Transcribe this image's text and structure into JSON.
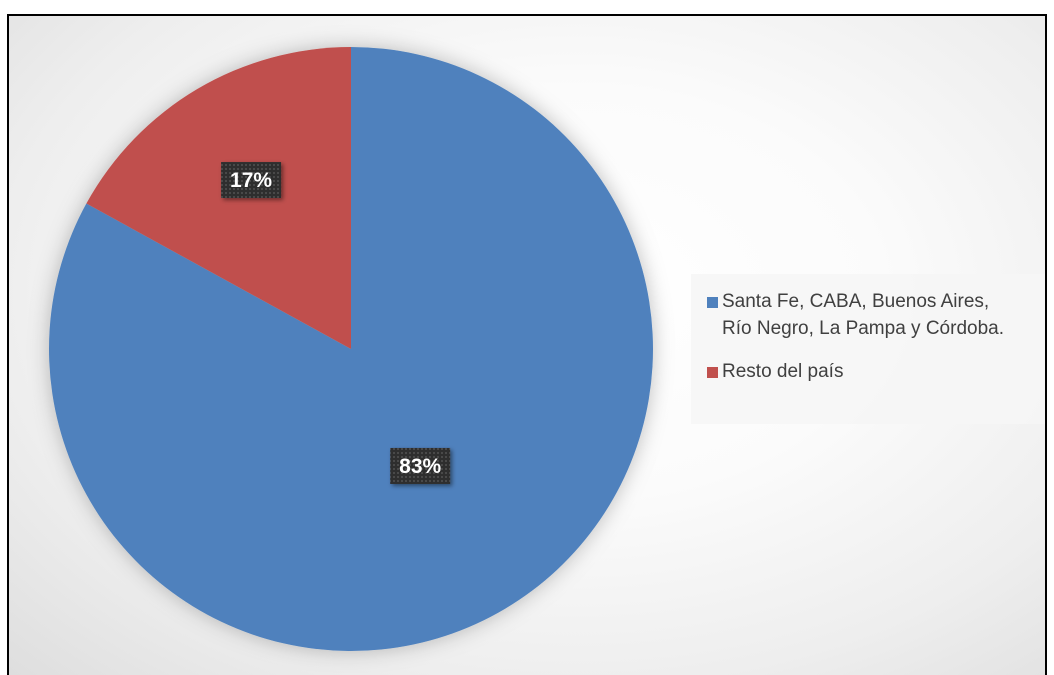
{
  "chart_data": {
    "type": "pie",
    "title": "",
    "series": [
      {
        "name": "Santa Fe, CABA, Buenos Aires,\nRío Negro, La Pampa y Córdoba.",
        "value": 83,
        "label": "83%",
        "color": "#4F81BD"
      },
      {
        "name": "Resto del país",
        "value": 17,
        "label": "17%",
        "color": "#C0504D"
      }
    ],
    "legend_position": "right",
    "data_labels": "percent"
  }
}
